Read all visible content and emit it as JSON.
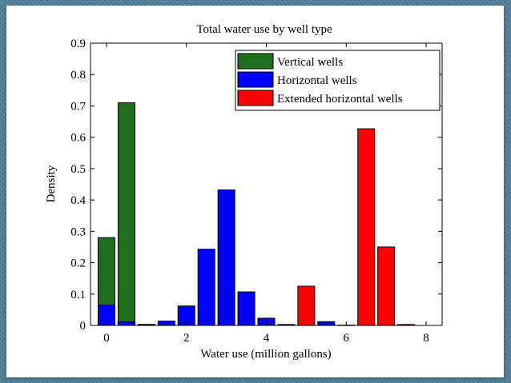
{
  "chart_data": {
    "type": "bar",
    "title": "Total water use by well type",
    "xlabel": "Water use (million gallons)",
    "ylabel": "Density",
    "xlim": [
      -0.4,
      8.4
    ],
    "ylim": [
      0,
      0.9
    ],
    "xticks": [
      0,
      2,
      4,
      6,
      8
    ],
    "yticks": [
      0,
      0.1,
      0.2,
      0.3,
      0.4,
      0.5,
      0.6,
      0.7,
      0.8,
      0.9
    ],
    "bar_width": 0.42,
    "grid": false,
    "legend_position": "top-right",
    "series": [
      {
        "name": "Vertical wells",
        "color": "#1f6f1f",
        "x": [
          0.0,
          0.5,
          1.0
        ],
        "values": [
          0.28,
          0.71,
          0.003
        ]
      },
      {
        "name": "Horizontal wells",
        "color": "#0000ff",
        "x": [
          0.0,
          0.5,
          1.0,
          1.5,
          2.0,
          2.5,
          3.0,
          3.5,
          4.0,
          4.5,
          5.5,
          6.0
        ],
        "values": [
          0.065,
          0.012,
          0.003,
          0.014,
          0.062,
          0.243,
          0.432,
          0.107,
          0.023,
          0.003,
          0.012,
          0.001
        ]
      },
      {
        "name": "Extended horizontal wells",
        "color": "#ff0000",
        "x": [
          5.0,
          6.5,
          7.0,
          7.5
        ],
        "values": [
          0.125,
          0.627,
          0.25,
          0.003
        ]
      }
    ]
  }
}
